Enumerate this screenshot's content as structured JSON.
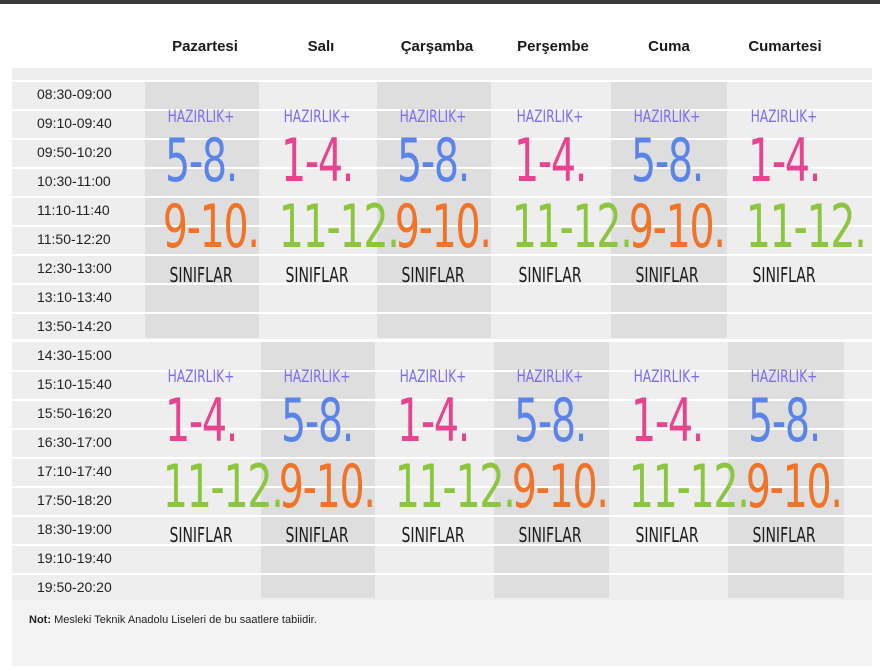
{
  "days": [
    "Pazartesi",
    "Salı",
    "Çarşamba",
    "Perşembe",
    "Cuma",
    "Cumartesi"
  ],
  "morning_times": [
    "08:30-09:00",
    "09:10-09:40",
    "09:50-10:20",
    "10:30-11:00",
    "11:10-11:40",
    "11:50-12:20",
    "12:30-13:00",
    "13:10-13:40",
    "13:50-14:20"
  ],
  "afternoon_times": [
    "14:30-15:00",
    "15:10-15:40",
    "15:50-16:20",
    "16:30-17:00",
    "17:10-17:40",
    "17:50-18:20",
    "18:30-19:00",
    "19:10-19:40",
    "19:50-20:20"
  ],
  "prep_label": "HAZIRLIK+",
  "classes_label": "SINIFLAR",
  "morning_blocks": [
    {
      "upper": "5-8.",
      "lower": "9-10."
    },
    {
      "upper": "1-4.",
      "lower": "11-12."
    },
    {
      "upper": "5-8.",
      "lower": "9-10."
    },
    {
      "upper": "1-4.",
      "lower": "11-12."
    },
    {
      "upper": "5-8.",
      "lower": "9-10."
    },
    {
      "upper": "1-4.",
      "lower": "11-12."
    }
  ],
  "afternoon_blocks": [
    {
      "upper": "1-4.",
      "lower": "11-12."
    },
    {
      "upper": "5-8.",
      "lower": "9-10."
    },
    {
      "upper": "1-4.",
      "lower": "11-12."
    },
    {
      "upper": "5-8.",
      "lower": "9-10."
    },
    {
      "upper": "1-4.",
      "lower": "11-12."
    },
    {
      "upper": "5-8.",
      "lower": "9-10."
    }
  ],
  "colors": {
    "g58": "#5b84e8",
    "g14": "#e8438f",
    "g910": "#f07328",
    "g1112": "#8cc63f",
    "prep": "#7b6cf0"
  },
  "note": {
    "label": "Not:",
    "text": "Mesleki Teknik Anadolu Liseleri de bu saatlere tabiidir."
  }
}
